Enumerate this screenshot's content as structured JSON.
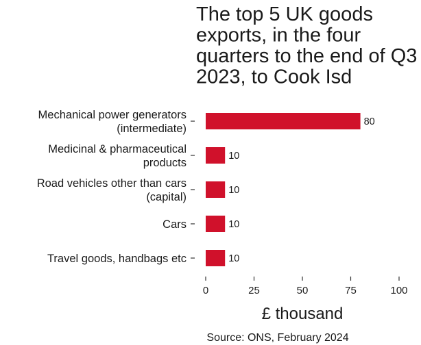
{
  "chart_data": {
    "type": "bar",
    "orientation": "horizontal",
    "title_lines": [
      "The top 5 UK goods",
      "exports, in the four",
      "quarters to the end of Q3",
      "2023, to Cook Isd"
    ],
    "categories": [
      [
        "Mechanical power generators",
        "(intermediate)"
      ],
      [
        "Medicinal & pharmaceutical",
        "products"
      ],
      [
        "Road vehicles other than cars",
        "(capital)"
      ],
      [
        "Cars"
      ],
      [
        "Travel goods, handbags etc"
      ]
    ],
    "values": [
      80,
      10,
      10,
      10,
      10
    ],
    "value_labels": [
      "80",
      "10",
      "10",
      "10",
      "10"
    ],
    "xlabel": "£ thousand",
    "xlim": [
      0,
      100
    ],
    "xticks": [
      0,
      25,
      50,
      75,
      100
    ],
    "bar_color": "#d0112b",
    "grid": false,
    "source": "Source: ONS, February 2024"
  }
}
